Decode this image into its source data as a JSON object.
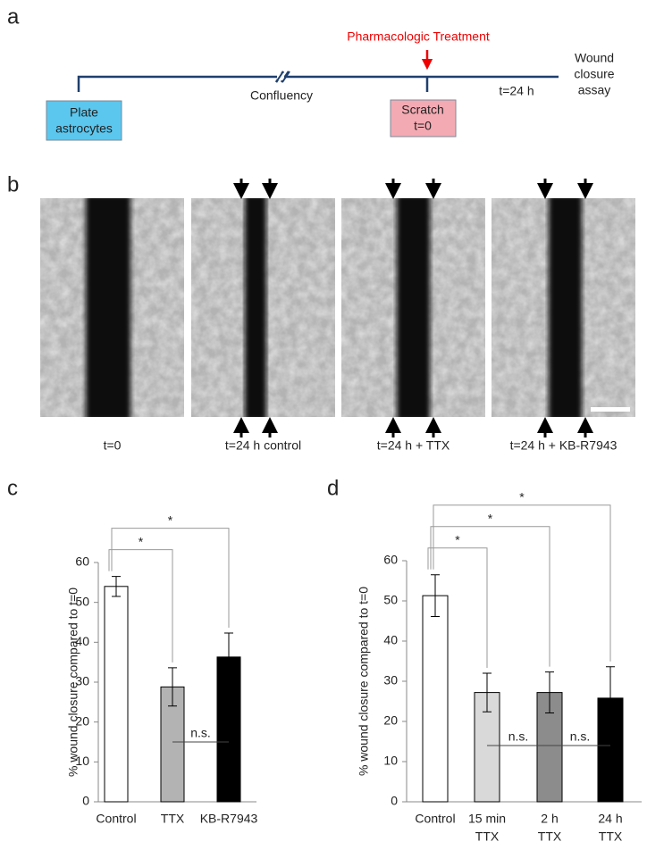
{
  "panel_labels": [
    "a",
    "b",
    "c",
    "d"
  ],
  "timeline": {
    "treatment": "Pharmacologic Treatment",
    "confluency": "Confluency",
    "time": "t=24 h",
    "assay": [
      "Wound",
      "closure",
      "assay"
    ],
    "plate": [
      "Plate",
      "astrocytes"
    ],
    "scratch": [
      "Scratch",
      "t=0"
    ]
  },
  "images": {
    "captions": [
      "t=0",
      "t=24 h control",
      "t=24 h + TTX",
      "t=24 h + KB-R7943"
    ]
  },
  "chart_data": [
    {
      "type": "bar",
      "ylabel": "% wound closure compared to t=0",
      "categories": [
        [
          "Control"
        ],
        [
          "TTX"
        ],
        [
          "KB-R7943"
        ]
      ],
      "values": [
        54,
        28.8,
        36.3
      ],
      "errors": [
        2.5,
        4.8,
        6
      ],
      "colors": [
        "#ffffff",
        "#b3b3b3",
        "#000000"
      ],
      "ylim": [
        0,
        60
      ],
      "yticks": [
        0,
        10,
        20,
        30,
        40,
        50,
        60
      ],
      "significance": [
        {
          "from": 0,
          "to": 1,
          "label": "*"
        },
        {
          "from": 0,
          "to": 2,
          "label": "*"
        }
      ],
      "ns": [
        {
          "from": 1,
          "to": 2,
          "label": "n.s.",
          "y": 15
        }
      ]
    },
    {
      "type": "bar",
      "ylabel": "% wound closure compared to t=0",
      "categories": [
        [
          "Control"
        ],
        [
          "15 min",
          "TTX"
        ],
        [
          "2 h",
          "TTX"
        ],
        [
          "24 h",
          "TTX"
        ]
      ],
      "values": [
        51.3,
        27.2,
        27.2,
        25.8
      ],
      "errors": [
        5.2,
        4.8,
        5.1,
        7.8
      ],
      "colors": [
        "#ffffff",
        "#d9d9d9",
        "#8c8c8c",
        "#000000"
      ],
      "ylim": [
        0,
        60
      ],
      "yticks": [
        0,
        10,
        20,
        30,
        40,
        50,
        60
      ],
      "significance": [
        {
          "from": 0,
          "to": 1,
          "label": "*"
        },
        {
          "from": 0,
          "to": 2,
          "label": "*"
        },
        {
          "from": 0,
          "to": 3,
          "label": "*"
        }
      ],
      "ns": [
        {
          "from": 1,
          "to": 2,
          "label": "n.s.",
          "y": 14
        },
        {
          "from": 2,
          "to": 3,
          "label": "n.s.",
          "y": 14
        }
      ]
    }
  ]
}
